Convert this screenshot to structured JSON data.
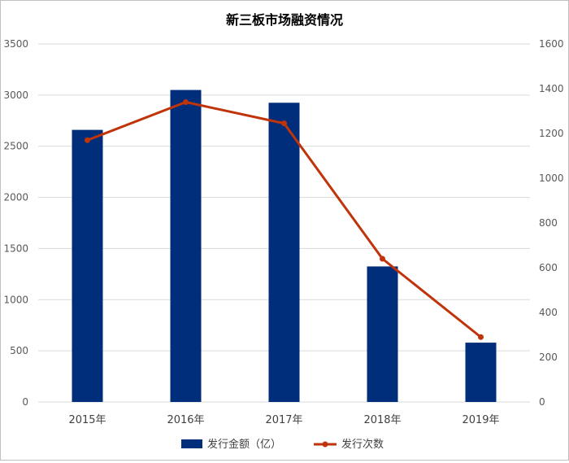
{
  "chart_data": {
    "type": "bar",
    "title": "新三板市场融资情况",
    "categories": [
      "2015年",
      "2016年",
      "2017年",
      "2018年",
      "2019年"
    ],
    "series": [
      {
        "name": "发行金额（亿）",
        "kind": "bar",
        "axis": "left",
        "color": "#002e7a",
        "values": [
          2660,
          3050,
          2925,
          1325,
          580
        ]
      },
      {
        "name": "发行次数",
        "kind": "line",
        "axis": "right",
        "color": "#c0340a",
        "values": [
          1170,
          1340,
          1245,
          640,
          290
        ]
      }
    ],
    "yleft": {
      "lim": [
        0,
        3500
      ],
      "ticks": [
        0,
        500,
        1000,
        1500,
        2000,
        2500,
        3000,
        3500
      ]
    },
    "yright": {
      "lim": [
        0,
        1600
      ],
      "ticks": [
        0,
        200,
        400,
        600,
        800,
        1000,
        1200,
        1400,
        1600
      ]
    },
    "grid": true,
    "legend": "bottom"
  }
}
